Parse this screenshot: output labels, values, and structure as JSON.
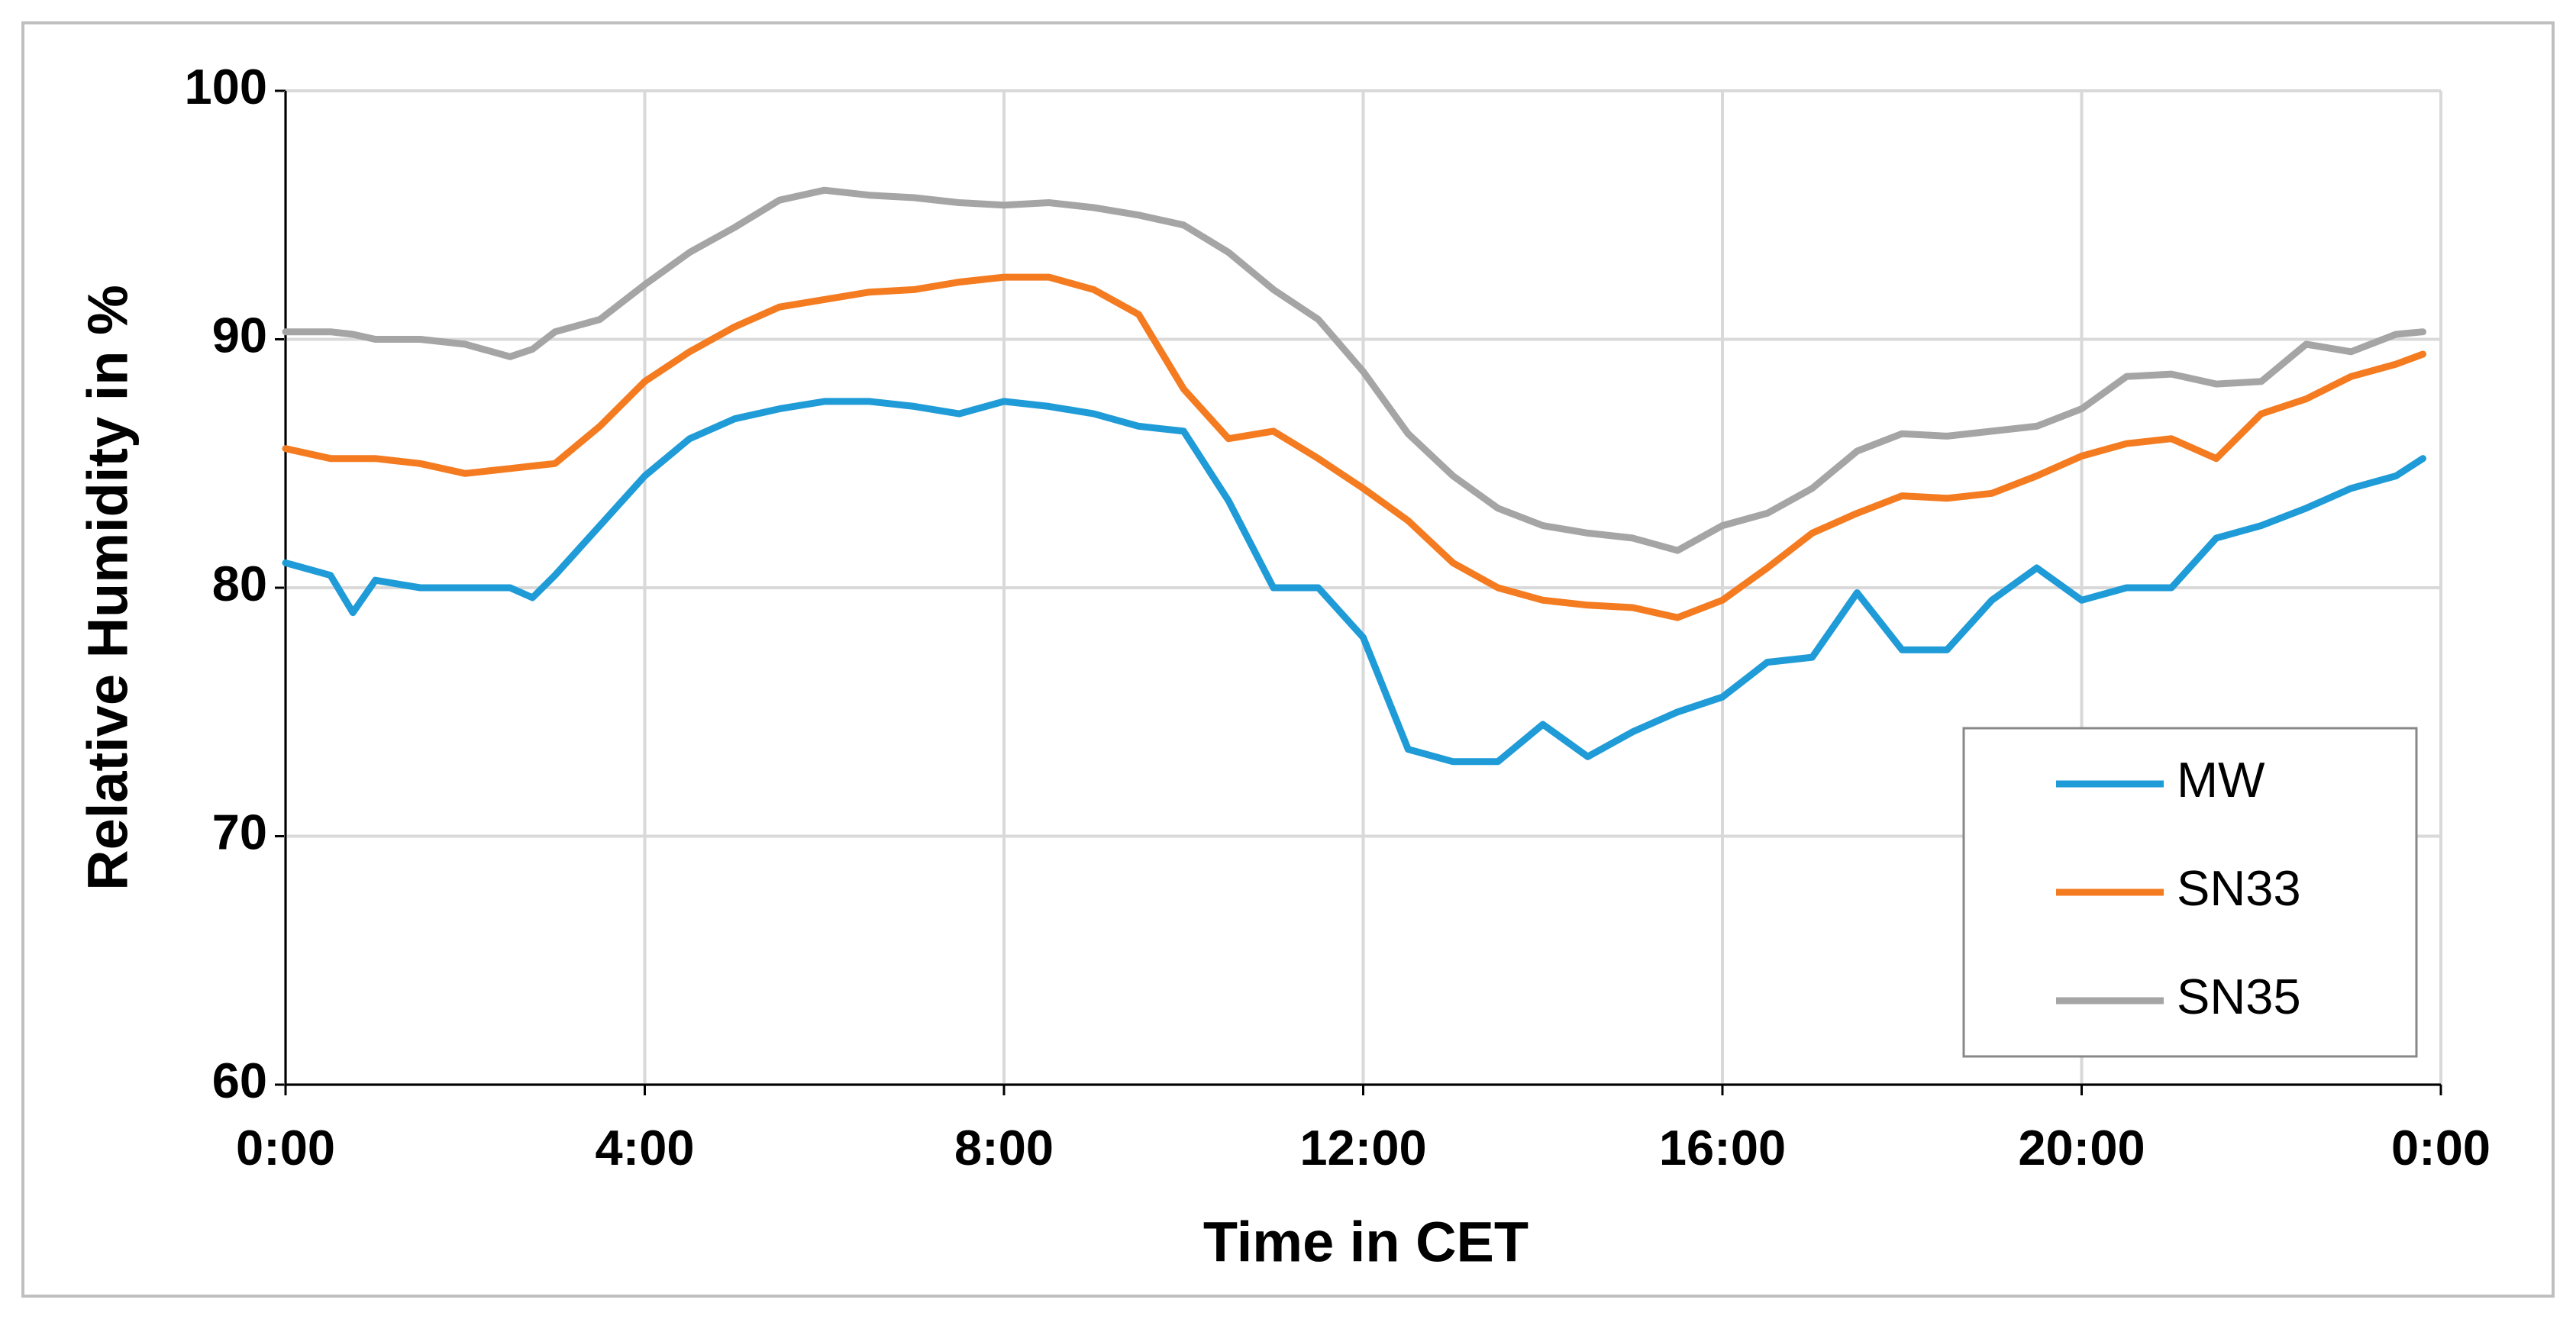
{
  "chart_data": {
    "type": "line",
    "x_label": "Time in CET",
    "y_label": "Relative Humidity in %",
    "x": [
      0,
      0.5,
      0.75,
      1,
      1.5,
      2,
      2.5,
      2.75,
      3,
      3.5,
      4,
      4.5,
      5,
      5.5,
      6,
      6.5,
      7,
      7.5,
      8,
      8.5,
      9,
      9.5,
      10,
      10.5,
      11,
      11.5,
      12,
      12.5,
      13,
      13.5,
      14,
      14.5,
      15,
      15.5,
      16,
      16.5,
      17,
      17.5,
      18,
      18.5,
      19,
      19.5,
      20,
      20.5,
      21,
      21.5,
      22,
      22.5,
      23,
      23.5,
      23.8
    ],
    "series": [
      {
        "name": "MW",
        "color": "#1f9bd7",
        "values": [
          81,
          80.5,
          79,
          80.3,
          80,
          80,
          80,
          79.6,
          80.5,
          82.5,
          84.5,
          86,
          86.8,
          87.2,
          87.5,
          87.5,
          87.3,
          87,
          87.5,
          87.3,
          87,
          86.5,
          86.3,
          83.5,
          80,
          80,
          78,
          73.5,
          73,
          73,
          74.5,
          73.2,
          74.2,
          75,
          75.6,
          77,
          77.2,
          79.8,
          77.5,
          77.5,
          79.5,
          80.8,
          79.5,
          80,
          80,
          82,
          82.5,
          83.2,
          84,
          84.5,
          85.2
        ]
      },
      {
        "name": "SN33",
        "color": "#f47b20",
        "values": [
          85.6,
          85.2,
          85.2,
          85.2,
          85,
          84.6,
          84.8,
          84.9,
          85,
          86.5,
          88.3,
          89.5,
          90.5,
          91.3,
          91.6,
          91.9,
          92,
          92.3,
          92.5,
          92.5,
          92,
          91,
          88,
          86,
          86.3,
          85.2,
          84,
          82.7,
          81,
          80,
          79.5,
          79.3,
          79.2,
          78.8,
          79.5,
          80.8,
          82.2,
          83,
          83.7,
          83.6,
          83.8,
          84.5,
          85.3,
          85.8,
          86,
          85.2,
          87,
          87.6,
          88.5,
          89,
          89.4
        ]
      },
      {
        "name": "SN35",
        "color": "#a5a5a5",
        "values": [
          90.3,
          90.3,
          90.2,
          90,
          90,
          89.8,
          89.3,
          89.6,
          90.3,
          90.8,
          92.2,
          93.5,
          94.5,
          95.6,
          96,
          95.8,
          95.7,
          95.5,
          95.4,
          95.5,
          95.3,
          95,
          94.6,
          93.5,
          92,
          90.8,
          88.7,
          86.2,
          84.5,
          83.2,
          82.5,
          82.2,
          82,
          81.5,
          82.5,
          83,
          84,
          85.5,
          86.2,
          86.1,
          86.3,
          86.5,
          87.2,
          88.5,
          88.6,
          88.2,
          88.3,
          89.8,
          89.5,
          90.2,
          90.3
        ]
      }
    ],
    "xlim": [
      0,
      24
    ],
    "xticks": [
      {
        "value": 0,
        "label": "0:00"
      },
      {
        "value": 4,
        "label": "4:00"
      },
      {
        "value": 8,
        "label": "8:00"
      },
      {
        "value": 12,
        "label": "12:00"
      },
      {
        "value": 16,
        "label": "16:00"
      },
      {
        "value": 20,
        "label": "20:00"
      },
      {
        "value": 24,
        "label": "0:00"
      }
    ],
    "ylim": [
      60,
      100
    ],
    "yticks": [
      60,
      70,
      80,
      90,
      100
    ],
    "grid": true,
    "legend": "lower right"
  }
}
